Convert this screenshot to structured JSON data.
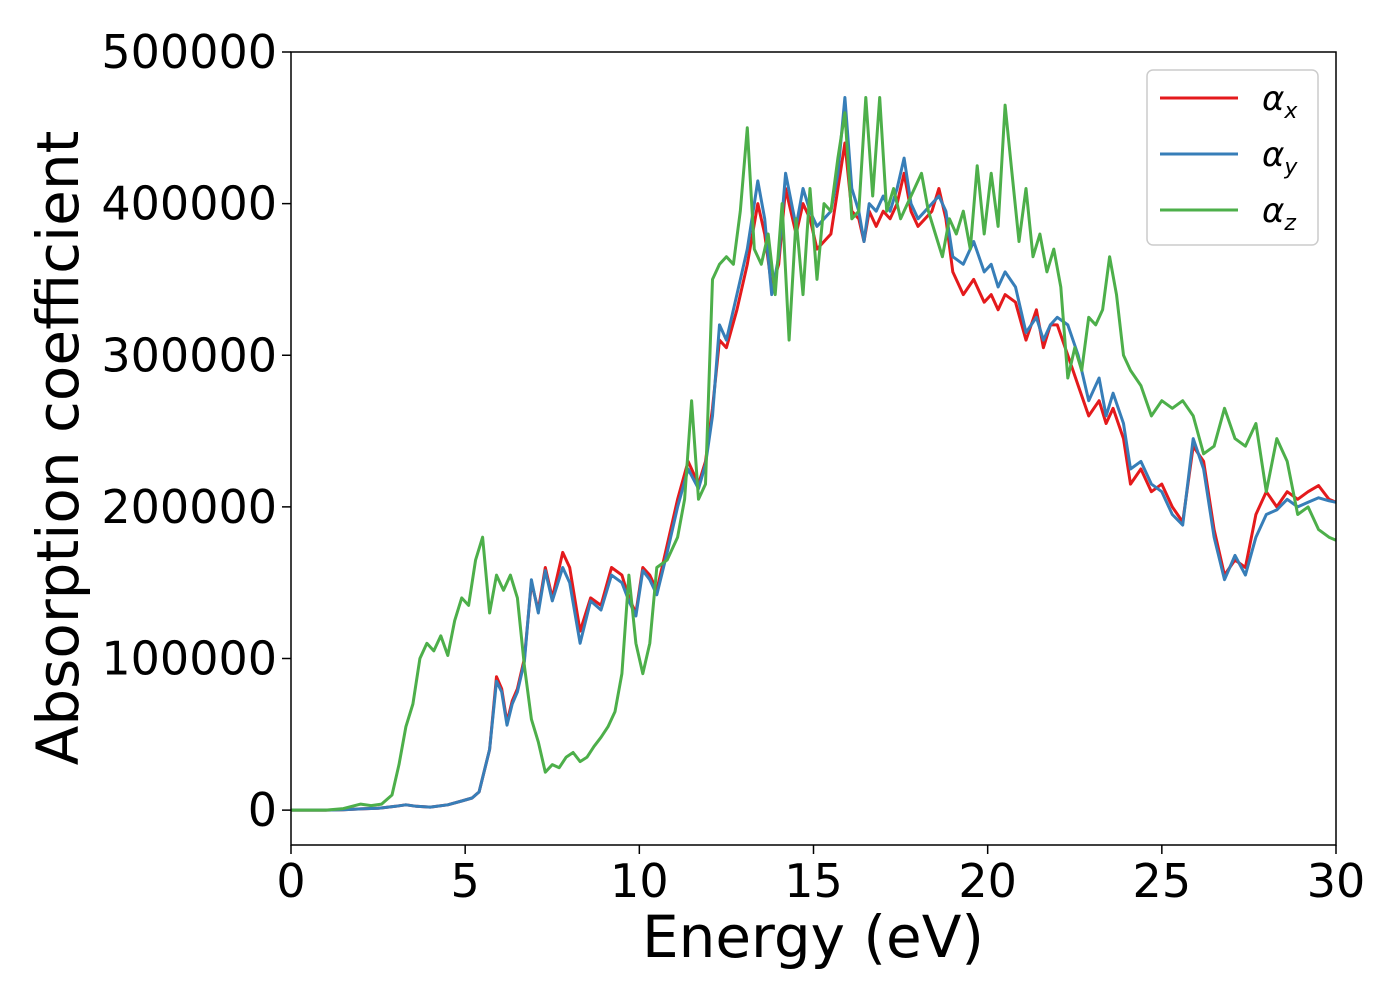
{
  "chart_data": {
    "type": "line",
    "title": "",
    "xlabel": "Energy (eV)",
    "ylabel": "Absorption coefficient",
    "xlim": [
      0,
      30
    ],
    "ylim": [
      -23000,
      500000
    ],
    "xticks": [
      "0",
      "5",
      "10",
      "15",
      "20",
      "25",
      "30"
    ],
    "yticks": [
      "0",
      "100000",
      "200000",
      "300000",
      "400000",
      "500000"
    ],
    "grid": false,
    "legend_position": "top-right",
    "series": [
      {
        "name": "αx",
        "symbol": "α",
        "subscript": "x",
        "color": "#e41a1c",
        "x": [
          0,
          1,
          1.5,
          2,
          2.5,
          3,
          3.3,
          3.6,
          4,
          4.5,
          4.9,
          5.2,
          5.4,
          5.7,
          5.9,
          6.05,
          6.2,
          6.35,
          6.5,
          6.7,
          6.9,
          7.1,
          7.3,
          7.5,
          7.8,
          8.0,
          8.3,
          8.6,
          8.9,
          9.2,
          9.5,
          9.7,
          9.9,
          10.1,
          10.3,
          10.5,
          10.8,
          11.1,
          11.4,
          11.7,
          11.9,
          12.1,
          12.3,
          12.5,
          12.8,
          13.1,
          13.4,
          13.6,
          13.8,
          14.0,
          14.2,
          14.5,
          14.7,
          14.9,
          15.1,
          15.3,
          15.5,
          15.7,
          15.9,
          16.1,
          16.3,
          16.45,
          16.6,
          16.8,
          17.0,
          17.2,
          17.4,
          17.6,
          17.8,
          18.0,
          18.2,
          18.4,
          18.6,
          18.8,
          19.0,
          19.3,
          19.6,
          19.9,
          20.1,
          20.3,
          20.5,
          20.8,
          21.1,
          21.4,
          21.6,
          21.8,
          22.0,
          22.3,
          22.6,
          22.9,
          23.2,
          23.4,
          23.6,
          23.9,
          24.1,
          24.4,
          24.7,
          25.0,
          25.3,
          25.6,
          25.9,
          26.2,
          26.5,
          26.8,
          27.1,
          27.4,
          27.7,
          28.0,
          28.3,
          28.6,
          28.9,
          29.2,
          29.5,
          29.8,
          30.0
        ],
        "y": [
          0,
          0,
          300,
          800,
          1200,
          2500,
          3500,
          2500,
          2000,
          3500,
          6000,
          8000,
          12000,
          40000,
          88000,
          80000,
          58000,
          72000,
          80000,
          100000,
          150000,
          132000,
          160000,
          140000,
          170000,
          160000,
          118000,
          140000,
          135000,
          160000,
          155000,
          140000,
          130000,
          160000,
          155000,
          145000,
          175000,
          205000,
          230000,
          215000,
          230000,
          265000,
          310000,
          305000,
          330000,
          360000,
          400000,
          380000,
          345000,
          360000,
          410000,
          380000,
          400000,
          390000,
          370000,
          375000,
          380000,
          410000,
          440000,
          395000,
          390000,
          375000,
          395000,
          385000,
          395000,
          390000,
          400000,
          420000,
          395000,
          385000,
          390000,
          395000,
          410000,
          390000,
          355000,
          340000,
          350000,
          335000,
          340000,
          330000,
          340000,
          335000,
          310000,
          330000,
          305000,
          320000,
          320000,
          300000,
          280000,
          260000,
          270000,
          255000,
          265000,
          245000,
          215000,
          225000,
          210000,
          215000,
          200000,
          190000,
          240000,
          230000,
          185000,
          155000,
          165000,
          160000,
          195000,
          210000,
          200000,
          210000,
          205000,
          210000,
          214000,
          205000,
          203000
        ]
      },
      {
        "name": "αy",
        "symbol": "α",
        "subscript": "y",
        "color": "#377eb8",
        "x": [
          0,
          1,
          1.5,
          2,
          2.5,
          3,
          3.3,
          3.6,
          4,
          4.5,
          4.9,
          5.2,
          5.4,
          5.7,
          5.9,
          6.05,
          6.2,
          6.35,
          6.5,
          6.7,
          6.9,
          7.1,
          7.3,
          7.5,
          7.8,
          8.0,
          8.3,
          8.6,
          8.9,
          9.2,
          9.5,
          9.7,
          9.9,
          10.1,
          10.3,
          10.5,
          10.8,
          11.1,
          11.4,
          11.7,
          11.9,
          12.1,
          12.3,
          12.5,
          12.8,
          13.1,
          13.4,
          13.6,
          13.8,
          14.0,
          14.2,
          14.5,
          14.7,
          14.9,
          15.1,
          15.3,
          15.5,
          15.7,
          15.9,
          16.1,
          16.3,
          16.45,
          16.6,
          16.8,
          17.0,
          17.2,
          17.4,
          17.6,
          17.8,
          18.0,
          18.2,
          18.4,
          18.6,
          18.8,
          19.0,
          19.3,
          19.6,
          19.9,
          20.1,
          20.3,
          20.5,
          20.8,
          21.1,
          21.4,
          21.6,
          21.8,
          22.0,
          22.3,
          22.6,
          22.9,
          23.2,
          23.4,
          23.6,
          23.9,
          24.1,
          24.4,
          24.7,
          25.0,
          25.3,
          25.6,
          25.9,
          26.2,
          26.5,
          26.8,
          27.1,
          27.4,
          27.7,
          28.0,
          28.3,
          28.6,
          28.9,
          29.2,
          29.5,
          29.8,
          30.0
        ],
        "y": [
          0,
          0,
          300,
          800,
          1200,
          2500,
          3500,
          2500,
          2000,
          3500,
          6000,
          8000,
          12000,
          40000,
          85000,
          78000,
          56000,
          70000,
          78000,
          98000,
          152000,
          130000,
          158000,
          138000,
          160000,
          150000,
          110000,
          138000,
          132000,
          155000,
          150000,
          138000,
          128000,
          158000,
          152000,
          142000,
          170000,
          200000,
          225000,
          212000,
          228000,
          260000,
          320000,
          310000,
          340000,
          370000,
          415000,
          390000,
          340000,
          365000,
          420000,
          385000,
          410000,
          395000,
          385000,
          390000,
          395000,
          420000,
          470000,
          410000,
          395000,
          375000,
          400000,
          395000,
          405000,
          395000,
          410000,
          430000,
          400000,
          390000,
          395000,
          400000,
          405000,
          395000,
          365000,
          360000,
          375000,
          355000,
          360000,
          345000,
          355000,
          345000,
          315000,
          325000,
          310000,
          320000,
          325000,
          320000,
          300000,
          270000,
          285000,
          260000,
          275000,
          255000,
          225000,
          230000,
          215000,
          210000,
          195000,
          188000,
          245000,
          225000,
          180000,
          152000,
          168000,
          155000,
          180000,
          195000,
          198000,
          205000,
          200000,
          203000,
          206000,
          204000,
          203000
        ]
      },
      {
        "name": "αz",
        "symbol": "α",
        "subscript": "z",
        "color": "#4daf4a",
        "x": [
          0,
          1,
          1.5,
          2,
          2.3,
          2.6,
          2.9,
          3.1,
          3.3,
          3.5,
          3.7,
          3.9,
          4.1,
          4.3,
          4.5,
          4.7,
          4.9,
          5.1,
          5.3,
          5.5,
          5.7,
          5.9,
          6.1,
          6.3,
          6.5,
          6.7,
          6.9,
          7.1,
          7.3,
          7.5,
          7.7,
          7.9,
          8.1,
          8.3,
          8.5,
          8.7,
          8.9,
          9.1,
          9.3,
          9.5,
          9.7,
          9.9,
          10.1,
          10.3,
          10.5,
          10.8,
          11.1,
          11.3,
          11.5,
          11.7,
          11.9,
          12.1,
          12.3,
          12.5,
          12.7,
          12.9,
          13.1,
          13.3,
          13.5,
          13.7,
          13.9,
          14.1,
          14.3,
          14.5,
          14.7,
          14.9,
          15.1,
          15.3,
          15.5,
          15.7,
          15.9,
          16.1,
          16.3,
          16.5,
          16.7,
          16.9,
          17.1,
          17.3,
          17.5,
          17.7,
          17.9,
          18.1,
          18.3,
          18.5,
          18.7,
          18.9,
          19.1,
          19.3,
          19.5,
          19.7,
          19.9,
          20.1,
          20.3,
          20.5,
          20.7,
          20.9,
          21.1,
          21.3,
          21.5,
          21.7,
          21.9,
          22.1,
          22.3,
          22.5,
          22.7,
          22.9,
          23.1,
          23.3,
          23.5,
          23.7,
          23.9,
          24.1,
          24.4,
          24.7,
          25.0,
          25.3,
          25.6,
          25.9,
          26.2,
          26.5,
          26.8,
          27.1,
          27.4,
          27.7,
          28.0,
          28.3,
          28.6,
          28.9,
          29.2,
          29.5,
          29.8,
          30.0
        ],
        "y": [
          0,
          0,
          1000,
          4000,
          3000,
          4000,
          10000,
          30000,
          55000,
          70000,
          100000,
          110000,
          105000,
          115000,
          102000,
          125000,
          140000,
          135000,
          165000,
          180000,
          130000,
          155000,
          145000,
          155000,
          140000,
          95000,
          60000,
          45000,
          25000,
          30000,
          28000,
          35000,
          38000,
          32000,
          35000,
          42000,
          48000,
          55000,
          65000,
          90000,
          155000,
          110000,
          90000,
          110000,
          160000,
          165000,
          180000,
          205000,
          270000,
          205000,
          215000,
          350000,
          360000,
          365000,
          360000,
          395000,
          450000,
          370000,
          360000,
          380000,
          340000,
          400000,
          310000,
          390000,
          340000,
          410000,
          350000,
          400000,
          395000,
          430000,
          460000,
          390000,
          395000,
          470000,
          405000,
          470000,
          395000,
          410000,
          390000,
          400000,
          410000,
          420000,
          395000,
          380000,
          365000,
          390000,
          380000,
          395000,
          370000,
          425000,
          380000,
          420000,
          385000,
          465000,
          420000,
          375000,
          410000,
          365000,
          380000,
          355000,
          370000,
          345000,
          285000,
          305000,
          290000,
          325000,
          320000,
          330000,
          365000,
          340000,
          300000,
          290000,
          280000,
          260000,
          270000,
          265000,
          270000,
          260000,
          235000,
          240000,
          265000,
          245000,
          240000,
          255000,
          210000,
          245000,
          230000,
          195000,
          200000,
          185000,
          180000,
          178000
        ]
      }
    ]
  }
}
